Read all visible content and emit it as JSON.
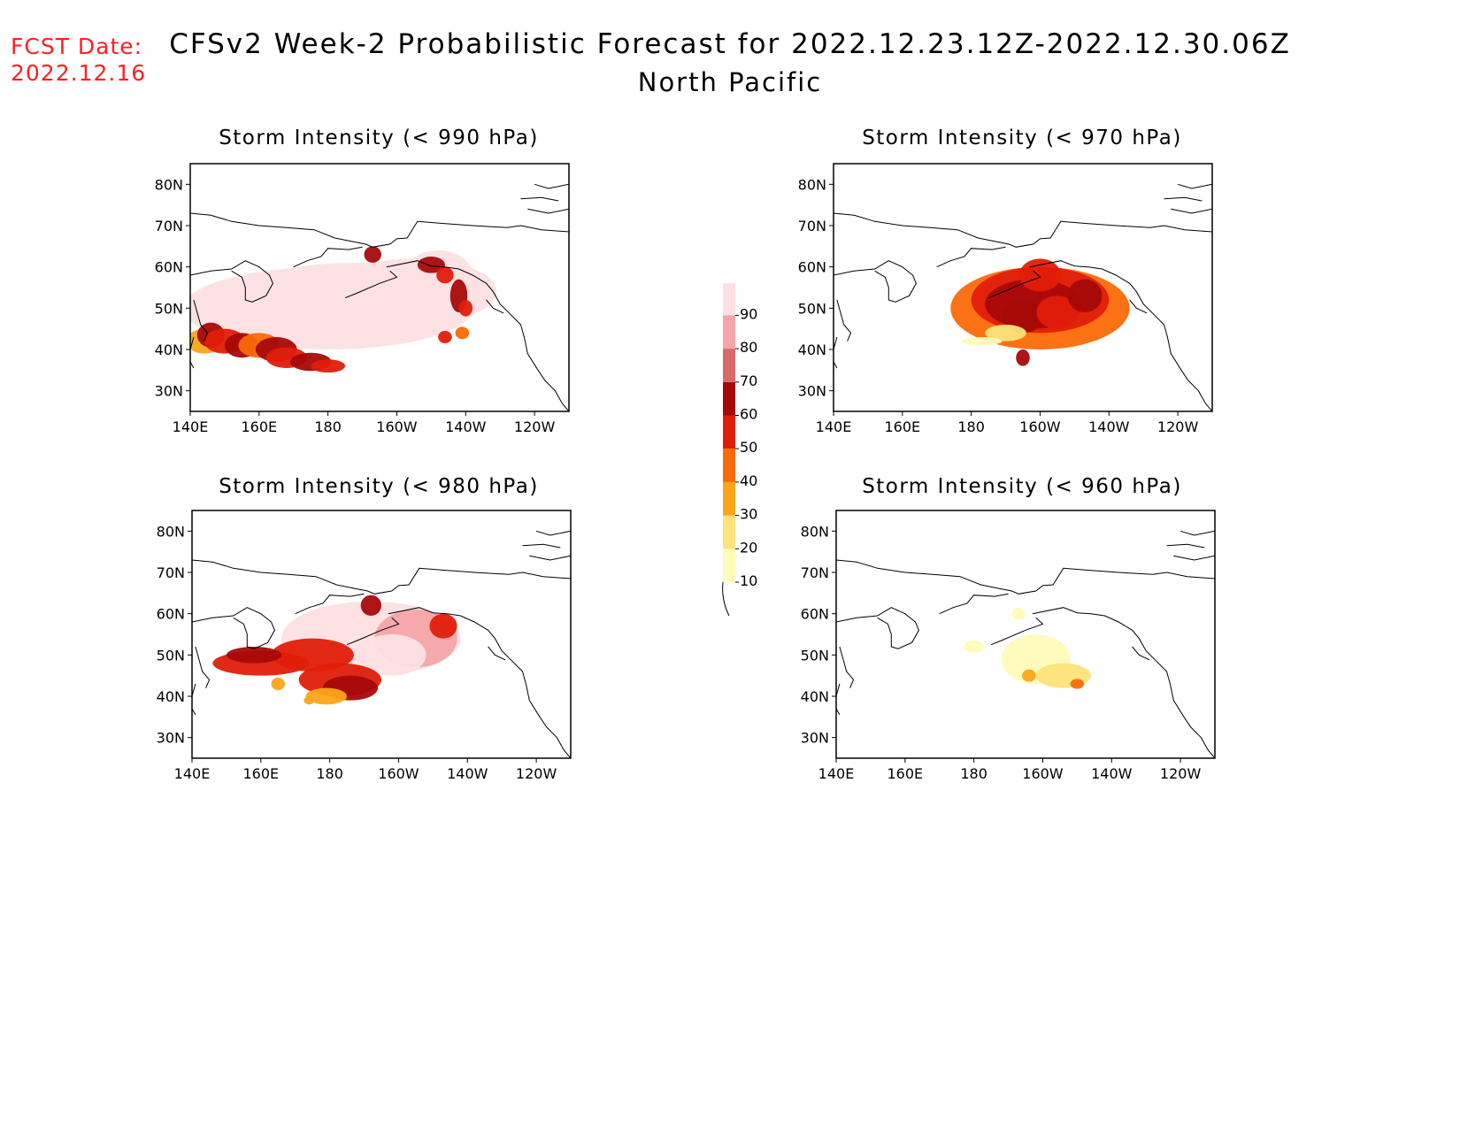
{
  "header": {
    "fcst_label": "FCST Date:",
    "fcst_date": "2022.12.16",
    "title": "CFSv2 Week-2 Probabilistic Forecast for 2022.12.23.12Z-2022.12.30.06Z",
    "region": "North Pacific"
  },
  "axes": {
    "lat_ticks": [
      "80N",
      "70N",
      "60N",
      "50N",
      "40N",
      "30N"
    ],
    "lon_ticks": [
      "140E",
      "160E",
      "180",
      "160W",
      "140W",
      "120W"
    ]
  },
  "panels": [
    {
      "title": "Storm Intensity (< 990 hPa)",
      "threshold_hPa": 990
    },
    {
      "title": "Storm Intensity (< 970 hPa)",
      "threshold_hPa": 970
    },
    {
      "title": "Storm Intensity (< 980 hPa)",
      "threshold_hPa": 980
    },
    {
      "title": "Storm Intensity (< 960 hPa)",
      "threshold_hPa": 960
    }
  ],
  "colorbar": {
    "levels": [
      "10",
      "20",
      "30",
      "40",
      "50",
      "60",
      "70",
      "80",
      "90"
    ],
    "colors": [
      "#fffbb8",
      "#fde37a",
      "#fba51a",
      "#fa6a06",
      "#e01e0a",
      "#a60a0a",
      "#d86a6a",
      "#f4a5a8",
      "#fde0e3"
    ]
  }
}
